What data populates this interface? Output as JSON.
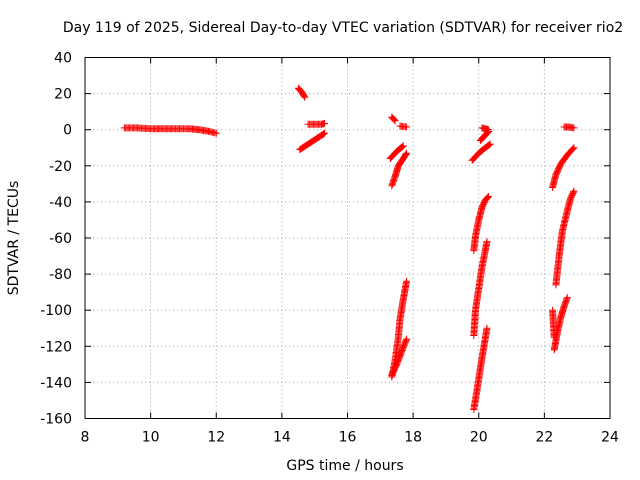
{
  "chart_data": {
    "type": "scatter",
    "title": "Day 119 of 2025, Sidereal Day-to-day VTEC variation (SDTVAR) for receiver rio2",
    "xlabel": "GPS time / hours",
    "ylabel": "SDTVAR / TECUs",
    "xlim": [
      8,
      24
    ],
    "ylim": [
      -160,
      40
    ],
    "xticks": [
      "8",
      "10",
      "12",
      "14",
      "16",
      "18",
      "20",
      "22",
      "24"
    ],
    "yticks": [
      "40",
      "20",
      "0",
      "-20",
      "-40",
      "-60",
      "-80",
      "-100",
      "-120",
      "-140",
      "-160"
    ],
    "grid": true,
    "legend": "none",
    "marker": "plus",
    "color": "#ff0000",
    "series": [
      {
        "points": [
          [
            9.2,
            1
          ],
          [
            9.6,
            1
          ],
          [
            10.0,
            0.5
          ],
          [
            10.4,
            0.5
          ],
          [
            10.8,
            0.5
          ],
          [
            11.2,
            0.5
          ],
          [
            11.5,
            0
          ],
          [
            11.8,
            -1
          ],
          [
            12.0,
            -2
          ]
        ]
      },
      {
        "points": [
          [
            14.5,
            23
          ],
          [
            14.6,
            21
          ],
          [
            14.7,
            18
          ]
        ]
      },
      {
        "points": [
          [
            14.8,
            3
          ],
          [
            15.0,
            3
          ],
          [
            15.2,
            3
          ],
          [
            15.3,
            3.5
          ]
        ]
      },
      {
        "points": [
          [
            14.55,
            -11
          ],
          [
            14.8,
            -8
          ],
          [
            15.05,
            -5
          ],
          [
            15.3,
            -2
          ]
        ]
      },
      {
        "points": [
          [
            17.35,
            7
          ],
          [
            17.45,
            5
          ]
        ]
      },
      {
        "points": [
          [
            17.6,
            2
          ],
          [
            17.8,
            1.5
          ]
        ]
      },
      {
        "points": [
          [
            17.3,
            -16
          ],
          [
            17.5,
            -12
          ],
          [
            17.7,
            -9
          ]
        ]
      },
      {
        "points": [
          [
            17.35,
            -31
          ],
          [
            17.45,
            -26
          ],
          [
            17.55,
            -20
          ],
          [
            17.7,
            -16
          ],
          [
            17.8,
            -13
          ]
        ]
      },
      {
        "points": [
          [
            17.35,
            -137
          ],
          [
            17.45,
            -128
          ],
          [
            17.55,
            -115
          ],
          [
            17.6,
            -105
          ],
          [
            17.7,
            -94
          ],
          [
            17.8,
            -84
          ]
        ]
      },
      {
        "points": [
          [
            17.35,
            -136
          ],
          [
            17.5,
            -130
          ],
          [
            17.65,
            -123
          ],
          [
            17.8,
            -116
          ]
        ]
      },
      {
        "points": [
          [
            20.1,
            1
          ],
          [
            20.2,
            0.5
          ],
          [
            20.3,
            0
          ]
        ]
      },
      {
        "points": [
          [
            20.05,
            -6
          ],
          [
            20.2,
            -3
          ],
          [
            20.3,
            -1
          ]
        ]
      },
      {
        "points": [
          [
            19.8,
            -17
          ],
          [
            20.0,
            -13
          ],
          [
            20.2,
            -10
          ],
          [
            20.35,
            -8
          ]
        ]
      },
      {
        "points": [
          [
            19.85,
            -67
          ],
          [
            19.9,
            -59
          ],
          [
            20.0,
            -50
          ],
          [
            20.1,
            -43
          ],
          [
            20.2,
            -39
          ],
          [
            20.3,
            -37
          ]
        ]
      },
      {
        "points": [
          [
            19.85,
            -114
          ],
          [
            19.9,
            -100
          ],
          [
            20.0,
            -88
          ],
          [
            20.1,
            -76
          ],
          [
            20.2,
            -67
          ],
          [
            20.25,
            -62
          ]
        ]
      },
      {
        "points": [
          [
            19.85,
            -155
          ],
          [
            19.95,
            -144
          ],
          [
            20.05,
            -132
          ],
          [
            20.15,
            -121
          ],
          [
            20.25,
            -110
          ]
        ]
      },
      {
        "points": [
          [
            22.6,
            1.5
          ],
          [
            22.75,
            1.5
          ],
          [
            22.9,
            1
          ]
        ]
      },
      {
        "points": [
          [
            22.25,
            -32
          ],
          [
            22.35,
            -25
          ],
          [
            22.5,
            -19
          ],
          [
            22.7,
            -14
          ],
          [
            22.9,
            -10
          ]
        ]
      },
      {
        "points": [
          [
            22.35,
            -86
          ],
          [
            22.45,
            -70
          ],
          [
            22.55,
            -56
          ],
          [
            22.7,
            -45
          ],
          [
            22.8,
            -38
          ],
          [
            22.9,
            -34
          ]
        ]
      },
      {
        "points": [
          [
            22.3,
            -122
          ],
          [
            22.4,
            -112
          ],
          [
            22.5,
            -104
          ],
          [
            22.6,
            -98
          ],
          [
            22.7,
            -93
          ]
        ]
      },
      {
        "points": [
          [
            22.25,
            -100
          ],
          [
            22.3,
            -115
          ]
        ]
      }
    ]
  }
}
